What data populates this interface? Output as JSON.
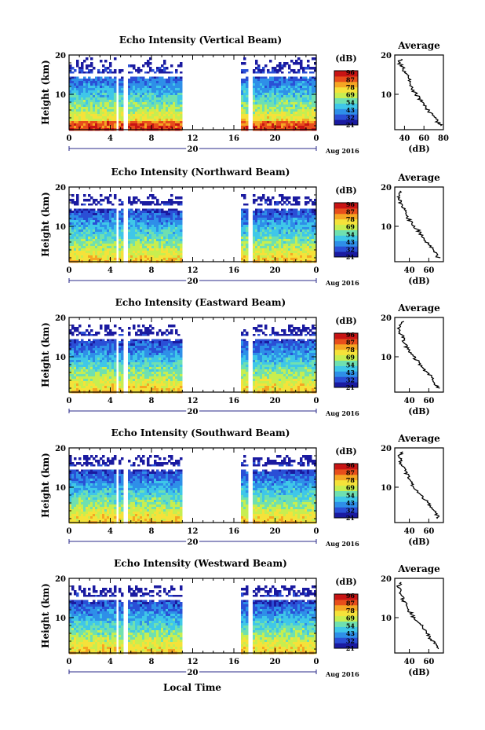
{
  "figure": {
    "x_label": "Local Time",
    "colorbar_unit": "(dB)",
    "colorbar_ticks": [
      "96",
      "87",
      "78",
      "69",
      "54",
      "43",
      "32",
      "21"
    ],
    "date_label": "Aug 2016",
    "day_label": "20",
    "colormap": [
      "#1a1aa0",
      "#2a4fd6",
      "#2e8fe8",
      "#3fc7e8",
      "#6fe0b0",
      "#c7ee50",
      "#f5e23a",
      "#f5a623",
      "#e84e1b",
      "#c81414"
    ]
  },
  "chart_data": [
    {
      "type": "heatmap",
      "title": "Echo Intensity (Vertical Beam)",
      "ylabel": "Height (km)",
      "xlim": [
        0,
        24
      ],
      "ylim": [
        1,
        20
      ],
      "x_ticks": [
        "0",
        "4",
        "8",
        "12",
        "16",
        "20",
        "0"
      ],
      "y_ticks": [
        "10",
        "20"
      ],
      "data_gaps_hours": [
        [
          4.5,
          4.75
        ],
        [
          5.25,
          5.6
        ],
        [
          10.9,
          16.6
        ],
        [
          17.25,
          17.75
        ]
      ],
      "profile": {
        "title": "Average",
        "xlabel": "(dB)",
        "x_ticks": [
          "40",
          "60",
          "80"
        ],
        "xlim": [
          30,
          80
        ],
        "ylim": [
          1,
          20
        ],
        "height_km": [
          2,
          3,
          4,
          5,
          6,
          7,
          8,
          9,
          10,
          11,
          12,
          13,
          14,
          15,
          16,
          17,
          18,
          19
        ],
        "value_db": [
          78,
          74,
          71,
          68,
          64,
          61,
          58,
          55,
          52,
          49,
          47,
          46,
          45,
          43,
          40,
          38,
          34,
          37
        ]
      }
    },
    {
      "type": "heatmap",
      "title": "Echo Intensity (Northward Beam)",
      "ylabel": "Height (km)",
      "xlim": [
        0,
        24
      ],
      "ylim": [
        1,
        20
      ],
      "x_ticks": [
        "0",
        "4",
        "8",
        "12",
        "16",
        "20",
        "0"
      ],
      "y_ticks": [
        "10",
        "20"
      ],
      "data_gaps_hours": [
        [
          4.5,
          4.75
        ],
        [
          5.25,
          5.6
        ],
        [
          10.9,
          16.6
        ],
        [
          17.25,
          17.75
        ]
      ],
      "profile": {
        "title": "Average",
        "xlabel": "(dB)",
        "x_ticks": [
          "40",
          "60"
        ],
        "xlim": [
          25,
          75
        ],
        "ylim": [
          1,
          20
        ],
        "height_km": [
          2,
          3,
          4,
          5,
          6,
          7,
          8,
          9,
          10,
          11,
          12,
          13,
          14,
          15,
          16,
          17,
          18,
          19
        ],
        "value_db": [
          70,
          67,
          64,
          61,
          58,
          55,
          52,
          49,
          45,
          42,
          39,
          37,
          35,
          33,
          31,
          30,
          28,
          32
        ]
      }
    },
    {
      "type": "heatmap",
      "title": "Echo Intensity (Eastward Beam)",
      "ylabel": "Height (km)",
      "xlim": [
        0,
        24
      ],
      "ylim": [
        1,
        20
      ],
      "x_ticks": [
        "0",
        "4",
        "8",
        "12",
        "16",
        "20",
        "0"
      ],
      "y_ticks": [
        "10",
        "20"
      ],
      "data_gaps_hours": [
        [
          4.5,
          4.75
        ],
        [
          5.25,
          5.6
        ],
        [
          10.9,
          16.6
        ],
        [
          17.25,
          17.75
        ]
      ],
      "profile": {
        "title": "Average",
        "xlabel": "(dB)",
        "x_ticks": [
          "40",
          "60"
        ],
        "xlim": [
          25,
          75
        ],
        "ylim": [
          1,
          20
        ],
        "height_km": [
          2,
          3,
          4,
          5,
          6,
          7,
          8,
          9,
          10,
          11,
          12,
          13,
          14,
          15,
          16,
          17,
          18,
          19
        ],
        "value_db": [
          70,
          67,
          65,
          62,
          58,
          55,
          51,
          48,
          44,
          41,
          38,
          36,
          34,
          33,
          31,
          30,
          29,
          33
        ]
      }
    },
    {
      "type": "heatmap",
      "title": "Echo Intensity (Southward Beam)",
      "ylabel": "Height (km)",
      "xlim": [
        0,
        24
      ],
      "ylim": [
        1,
        20
      ],
      "x_ticks": [
        "0",
        "4",
        "8",
        "12",
        "16",
        "20",
        "0"
      ],
      "y_ticks": [
        "10",
        "20"
      ],
      "data_gaps_hours": [
        [
          4.5,
          4.75
        ],
        [
          5.25,
          5.6
        ],
        [
          10.9,
          16.6
        ],
        [
          17.25,
          17.75
        ]
      ],
      "profile": {
        "title": "Average",
        "xlabel": "(dB)",
        "x_ticks": [
          "40",
          "60"
        ],
        "xlim": [
          25,
          75
        ],
        "ylim": [
          1,
          20
        ],
        "height_km": [
          2,
          3,
          4,
          5,
          6,
          7,
          8,
          9,
          10,
          11,
          12,
          13,
          14,
          15,
          16,
          17,
          18,
          19
        ],
        "value_db": [
          70,
          68,
          65,
          62,
          59,
          56,
          52,
          49,
          45,
          42,
          40,
          38,
          36,
          34,
          32,
          31,
          29,
          33
        ]
      }
    },
    {
      "type": "heatmap",
      "title": "Echo Intensity (Westward Beam)",
      "ylabel": "Height (km)",
      "xlim": [
        0,
        24
      ],
      "ylim": [
        1,
        20
      ],
      "x_ticks": [
        "0",
        "4",
        "8",
        "12",
        "16",
        "20",
        "0"
      ],
      "y_ticks": [
        "10",
        "20"
      ],
      "data_gaps_hours": [
        [
          4.5,
          4.75
        ],
        [
          5.25,
          5.6
        ],
        [
          10.9,
          16.6
        ],
        [
          17.25,
          17.75
        ]
      ],
      "profile": {
        "title": "Average",
        "xlabel": "(dB)",
        "x_ticks": [
          "40",
          "60"
        ],
        "xlim": [
          25,
          75
        ],
        "ylim": [
          1,
          20
        ],
        "height_km": [
          2,
          3,
          4,
          5,
          6,
          7,
          8,
          9,
          10,
          11,
          12,
          13,
          14,
          15,
          16,
          17,
          18,
          19
        ],
        "value_db": [
          70,
          67,
          64,
          61,
          58,
          55,
          52,
          48,
          45,
          42,
          39,
          37,
          35,
          33,
          32,
          30,
          29,
          33
        ]
      }
    }
  ]
}
